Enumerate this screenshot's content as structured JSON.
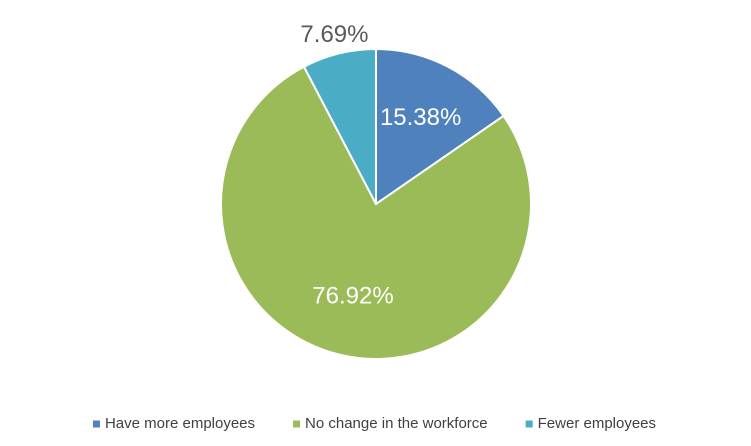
{
  "chart_data": {
    "type": "pie",
    "categories": [
      "Have more employees",
      "No change in the workforce",
      "Fewer employees"
    ],
    "values": [
      15.38,
      76.92,
      7.69
    ],
    "value_labels": [
      "15.38%",
      "76.92%",
      "7.69%"
    ],
    "colors": [
      "#4f81bd",
      "#9bbb59",
      "#4bacc6"
    ],
    "legend": "bottom"
  }
}
